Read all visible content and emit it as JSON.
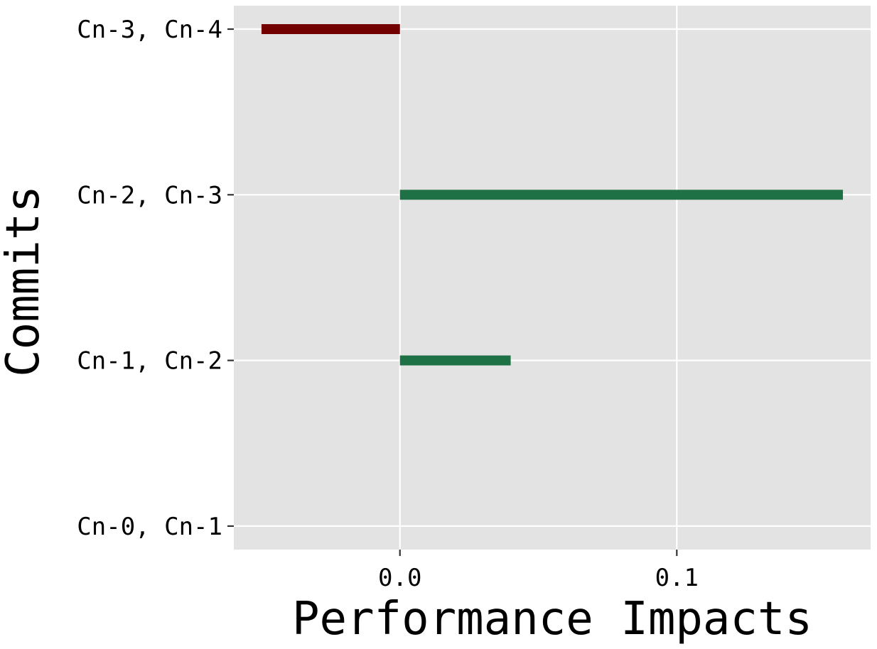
{
  "chart_data": {
    "type": "bar",
    "orientation": "horizontal",
    "title": "",
    "xlabel": "Performance Impacts",
    "ylabel": "Commits",
    "categories": [
      "Cn-3, Cn-4",
      "Cn-2, Cn-3",
      "Cn-1, Cn-2",
      "Cn-0, Cn-1"
    ],
    "values": [
      -0.05,
      0.16,
      0.04,
      0.0
    ],
    "xlim": [
      -0.06,
      0.17
    ],
    "xticks": [
      0.0,
      0.1
    ],
    "xtick_labels": [
      "0.0",
      "0.1"
    ],
    "grid": true,
    "legend": "none",
    "colors": {
      "positive": "#1e7145",
      "negative": "#720000",
      "panel_background": "#e3e3e3",
      "grid": "#ffffff"
    }
  }
}
